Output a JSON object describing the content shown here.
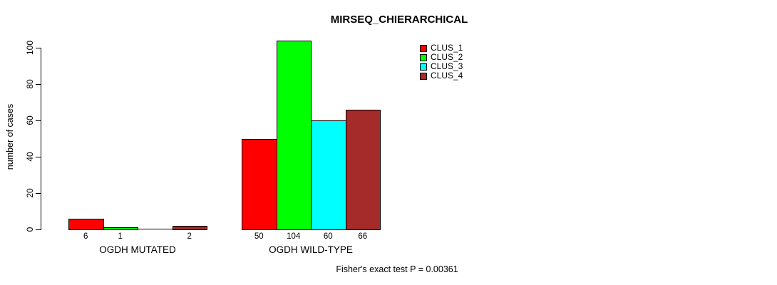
{
  "chart_data": {
    "type": "bar",
    "title": "MIRSEQ_CHIERARCHICAL",
    "categories": [
      "OGDH MUTATED",
      "OGDH WILD-TYPE"
    ],
    "series": [
      {
        "name": "CLUS_1",
        "color": "#ff0000",
        "values": [
          6,
          50
        ]
      },
      {
        "name": "CLUS_2",
        "color": "#00ff00",
        "values": [
          1,
          104
        ]
      },
      {
        "name": "CLUS_3",
        "color": "#00ffff",
        "values": [
          0,
          60
        ]
      },
      {
        "name": "CLUS_4",
        "color": "#a52a2a",
        "values": [
          2,
          66
        ]
      }
    ],
    "xlabel": "",
    "ylabel": "number of cases",
    "ylim": [
      0,
      100
    ],
    "yticks": [
      0,
      20,
      40,
      60,
      80,
      100
    ],
    "grid": false,
    "legend_position": "top-right",
    "bar_value_labels_shown": true,
    "zero_value_labels_hidden": true,
    "annotation": "Fisher's exact test P = 0.00361"
  }
}
